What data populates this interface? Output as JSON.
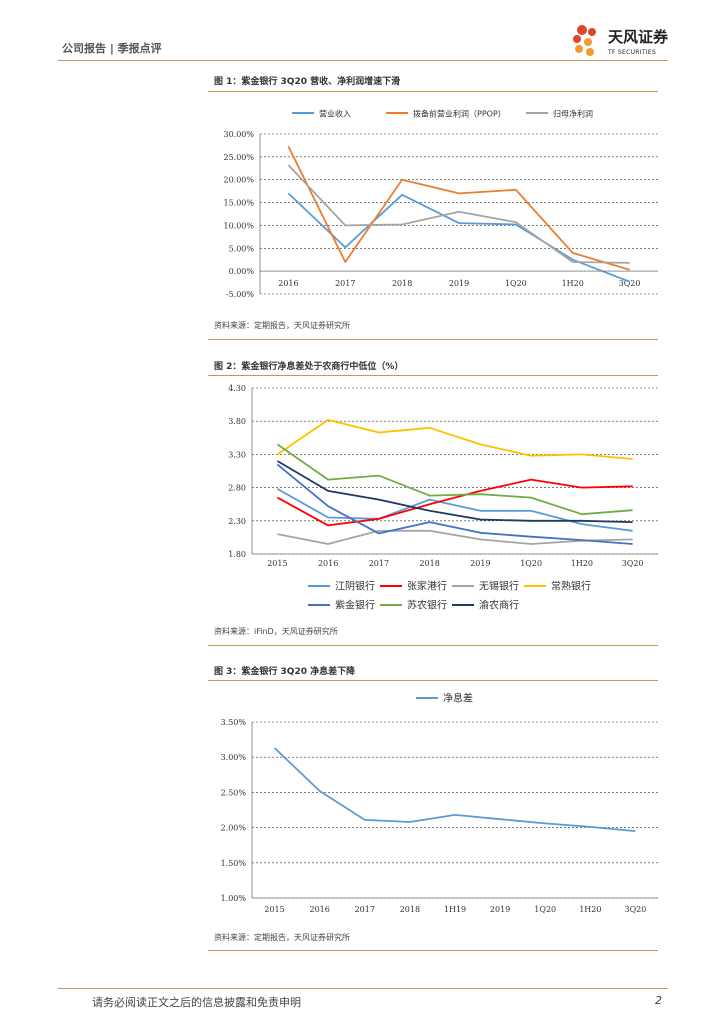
{
  "header": {
    "section": "公司报告 | 季报点评",
    "brand_cn": "天风证券",
    "brand_en": "TF SECURITIES",
    "brand_color": "#c8955a"
  },
  "figures": [
    {
      "title": "图 1：紫金银行 3Q20 营收、净利润增速下滑",
      "source": "资料来源：定期报告，天风证券研究所"
    },
    {
      "title": "图 2：紫金银行净息差处于农商行中低位（%）",
      "source": "资料来源：iFinD，天风证券研究所"
    },
    {
      "title": "图 3：紫金银行 3Q20 净息差下降",
      "source": "资料来源：定期报告，天风证券研究所"
    }
  ],
  "chart_data": [
    {
      "type": "line",
      "categories": [
        "2016",
        "2017",
        "2018",
        "2019",
        "1Q20",
        "1H20",
        "3Q20"
      ],
      "y_ticks": [
        "30.00%",
        "25.00%",
        "20.00%",
        "15.00%",
        "10.00%",
        "5.00%",
        "0.00%",
        "-5.00%"
      ],
      "ylim": [
        -5,
        30
      ],
      "series": [
        {
          "name": "营业收入",
          "color": "#5b9bd5",
          "values": [
            17.0,
            5.2,
            16.7,
            10.5,
            10.2,
            2.5,
            -2.3
          ]
        },
        {
          "name": "拨备前营业利润（PPOP）",
          "color": "#ed7d31",
          "values": [
            27.3,
            2.0,
            20.0,
            17.0,
            17.8,
            4.0,
            0.3
          ]
        },
        {
          "name": "归母净利润",
          "color": "#a5a5a5",
          "values": [
            23.2,
            10.0,
            10.2,
            13.0,
            10.7,
            2.0,
            1.8
          ]
        }
      ]
    },
    {
      "type": "line",
      "categories": [
        "2015",
        "2016",
        "2017",
        "2018",
        "2019",
        "1Q20",
        "1H20",
        "3Q20"
      ],
      "y_ticks": [
        "4.30",
        "3.80",
        "3.30",
        "2.80",
        "2.30",
        "1.80"
      ],
      "ylim": [
        1.8,
        4.3
      ],
      "series": [
        {
          "name": "江阴银行",
          "color": "#5b9bd5",
          "values": [
            2.78,
            2.35,
            2.33,
            2.62,
            2.45,
            2.45,
            2.25,
            2.15
          ]
        },
        {
          "name": "张家港行",
          "color": "#ff0000",
          "values": [
            2.65,
            2.23,
            2.33,
            2.55,
            2.75,
            2.92,
            2.8,
            2.82
          ]
        },
        {
          "name": "无锡银行",
          "color": "#a5a5a5",
          "values": [
            2.1,
            1.95,
            2.15,
            2.15,
            2.02,
            1.95,
            2.0,
            2.02
          ]
        },
        {
          "name": "常熟银行",
          "color": "#ffc000",
          "values": [
            3.3,
            3.82,
            3.63,
            3.7,
            3.45,
            3.28,
            3.3,
            3.23
          ]
        },
        {
          "name": "紫金银行",
          "color": "#4472c4",
          "values": [
            3.15,
            2.52,
            2.11,
            2.28,
            2.12,
            2.06,
            2.01,
            1.95
          ]
        },
        {
          "name": "苏农银行",
          "color": "#70ad47",
          "values": [
            3.45,
            2.92,
            2.98,
            2.68,
            2.7,
            2.65,
            2.4,
            2.46
          ]
        },
        {
          "name": "渝农商行",
          "color": "#1f3864",
          "values": [
            3.2,
            2.75,
            2.62,
            2.45,
            2.32,
            2.3,
            2.3,
            2.28
          ]
        }
      ]
    },
    {
      "type": "line",
      "categories": [
        "2015",
        "2016",
        "2017",
        "2018",
        "1H19",
        "2019",
        "1Q20",
        "1H20",
        "3Q20"
      ],
      "y_ticks": [
        "3.50%",
        "3.00%",
        "2.50%",
        "2.00%",
        "1.50%",
        "1.00%"
      ],
      "ylim": [
        1.0,
        3.5
      ],
      "series": [
        {
          "name": "净息差",
          "color": "#5b9bd5",
          "values": [
            3.13,
            2.52,
            2.11,
            2.08,
            2.18,
            2.12,
            2.06,
            2.01,
            1.95
          ]
        }
      ]
    }
  ],
  "footer": {
    "disclaimer": "请务必阅读正文之后的信息披露和免责申明",
    "page": "2"
  }
}
